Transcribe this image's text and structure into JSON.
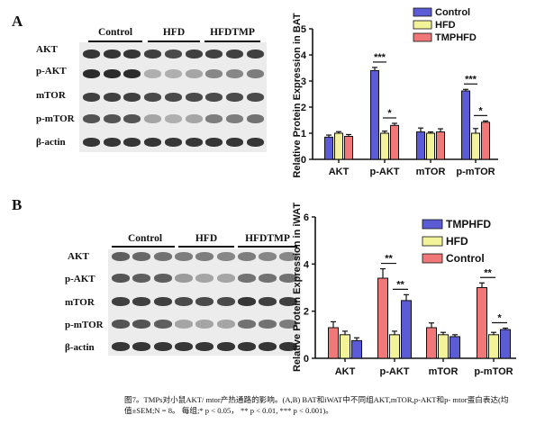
{
  "figure": {
    "panel_a": {
      "label": "A"
    },
    "panel_b": {
      "label": "B"
    },
    "caption_line1": "图7。TMPs对小鼠AKT/ mtor产热通路的影响。(A,B) BAT和iWAT中不同组AKT,mTOR,p-AKT和p- mtor蛋白表达(均",
    "caption_line2": "值±SEM;N = 8。 每组;* p < 0.05， ** p < 0.01, *** p < 0.001)。"
  },
  "western_a": {
    "groups": [
      "Control",
      "HFD",
      "HFDTMP"
    ],
    "rows": [
      "AKT",
      "p-AKT",
      "mTOR",
      "p-mTOR",
      "β-actin"
    ]
  },
  "western_b": {
    "groups": [
      "Control",
      "HFD",
      "HFDTMP"
    ],
    "rows": [
      "AKT",
      "p-AKT",
      "mTOR",
      "p-mTOR",
      "β-actin"
    ]
  },
  "chart_data": [
    {
      "type": "bar",
      "title": "",
      "xlabel": "",
      "ylabel": "Relative Protein Expression in BAT",
      "categories": [
        "AKT",
        "p-AKT",
        "mTOR",
        "p-mTOR"
      ],
      "ylim": [
        0,
        5
      ],
      "yticks": [
        0,
        1,
        2,
        3,
        4,
        5
      ],
      "legend_position": "top-right",
      "series": [
        {
          "name": "Control",
          "color": "#5b5bd6",
          "values": [
            0.85,
            3.4,
            1.05,
            2.62
          ],
          "errors": [
            0.08,
            0.12,
            0.15,
            0.06
          ]
        },
        {
          "name": "HFD",
          "color": "#f3f39a",
          "values": [
            1.0,
            1.0,
            1.0,
            1.0
          ],
          "errors": [
            0.06,
            0.08,
            0.05,
            0.18
          ]
        },
        {
          "name": "TMPHFD",
          "color": "#f07878",
          "values": [
            0.88,
            1.3,
            1.05,
            1.42
          ],
          "errors": [
            0.07,
            0.08,
            0.12,
            0.05
          ]
        }
      ],
      "significance": [
        {
          "category": "p-AKT",
          "from": 0,
          "to": 1,
          "label": "***"
        },
        {
          "category": "p-AKT",
          "from": 1,
          "to": 2,
          "label": "*"
        },
        {
          "category": "p-mTOR",
          "from": 0,
          "to": 1,
          "label": "***"
        },
        {
          "category": "p-mTOR",
          "from": 1,
          "to": 2,
          "label": "*"
        }
      ]
    },
    {
      "type": "bar",
      "title": "",
      "xlabel": "",
      "ylabel": "Relative Protein Expression in iWAT",
      "categories": [
        "AKT",
        "p-AKT",
        "mTOR",
        "p-mTOR"
      ],
      "ylim": [
        0,
        6
      ],
      "yticks": [
        0,
        2,
        4,
        6
      ],
      "legend_position": "top-right",
      "series": [
        {
          "name": "Control",
          "color": "#f07878",
          "values": [
            1.3,
            3.4,
            1.3,
            3.0
          ],
          "errors": [
            0.25,
            0.4,
            0.2,
            0.2
          ]
        },
        {
          "name": "HFD",
          "color": "#f3f39a",
          "values": [
            1.0,
            1.0,
            1.0,
            1.0
          ],
          "errors": [
            0.15,
            0.15,
            0.1,
            0.1
          ]
        },
        {
          "name": "TMPHFD",
          "color": "#5b5bd6",
          "values": [
            0.75,
            2.45,
            0.92,
            1.22
          ],
          "errors": [
            0.12,
            0.25,
            0.08,
            0.06
          ]
        }
      ],
      "legend_order": [
        2,
        1,
        0
      ],
      "significance": [
        {
          "category": "p-AKT",
          "from": 0,
          "to": 1,
          "label": "**"
        },
        {
          "category": "p-AKT",
          "from": 1,
          "to": 2,
          "label": "**"
        },
        {
          "category": "p-mTOR",
          "from": 0,
          "to": 1,
          "label": "**"
        },
        {
          "category": "p-mTOR",
          "from": 1,
          "to": 2,
          "label": "*"
        }
      ]
    }
  ]
}
